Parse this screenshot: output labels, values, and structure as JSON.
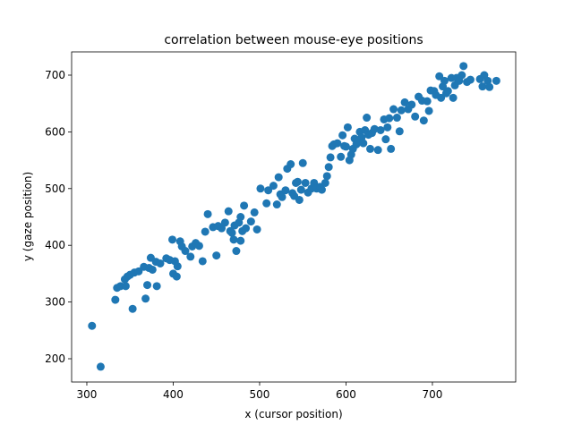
{
  "chart_data": {
    "type": "scatter",
    "title": "correlation between mouse-eye positions",
    "x_label": "x (cursor position)",
    "y_label": "y (gaze position)",
    "color": "#1f77b4",
    "xlim": [
      282.4,
      796.4
    ],
    "ylim": [
      159,
      741
    ],
    "xticks": [
      300,
      400,
      500,
      600,
      700
    ],
    "yticks": [
      200,
      300,
      400,
      500,
      600,
      700
    ],
    "x": [
      306,
      316,
      333,
      335,
      339,
      344,
      347,
      350,
      345,
      353,
      355,
      360,
      366,
      368,
      370,
      372,
      374,
      376,
      380,
      381,
      385,
      392,
      396,
      399,
      400,
      402,
      404,
      405,
      408,
      410,
      414,
      420,
      422,
      426,
      430,
      434,
      437,
      440,
      446,
      450,
      452,
      456,
      460,
      464,
      466,
      468,
      470,
      471,
      473,
      476,
      478,
      478,
      480,
      482,
      484,
      490,
      494,
      497,
      501,
      508,
      510,
      516,
      520,
      522,
      524,
      526,
      530,
      532,
      536,
      538,
      540,
      542,
      544,
      546,
      548,
      550,
      553,
      556,
      560,
      563,
      566,
      570,
      572,
      576,
      578,
      580,
      582,
      584,
      586,
      590,
      594,
      596,
      598,
      600,
      602,
      604,
      606,
      608,
      610,
      612,
      614,
      616,
      618,
      620,
      622,
      624,
      626,
      628,
      630,
      633,
      637,
      640,
      644,
      646,
      648,
      650,
      652,
      655,
      659,
      662,
      664,
      668,
      672,
      676,
      680,
      684,
      688,
      690,
      694,
      696,
      698,
      702,
      704,
      708,
      710,
      712,
      714,
      716,
      718,
      722,
      724,
      726,
      728,
      731,
      734,
      736,
      740,
      744,
      755,
      758,
      760,
      764,
      766,
      774
    ],
    "y": [
      258,
      186,
      304,
      325,
      328,
      340,
      345,
      348,
      328,
      288,
      352,
      354,
      362,
      306,
      330,
      360,
      378,
      357,
      371,
      328,
      368,
      377,
      374,
      410,
      350,
      372,
      345,
      363,
      407,
      398,
      390,
      380,
      398,
      404,
      399,
      372,
      424,
      455,
      432,
      382,
      434,
      430,
      440,
      460,
      425,
      422,
      410,
      435,
      390,
      440,
      450,
      408,
      425,
      470,
      430,
      442,
      458,
      428,
      500,
      474,
      497,
      505,
      472,
      520,
      490,
      485,
      497,
      535,
      543,
      492,
      487,
      510,
      512,
      480,
      498,
      545,
      510,
      493,
      500,
      510,
      500,
      503,
      498,
      510,
      522,
      538,
      555,
      575,
      578,
      580,
      556,
      594,
      575,
      574,
      608,
      550,
      560,
      570,
      588,
      578,
      583,
      600,
      590,
      580,
      603,
      625,
      595,
      570,
      598,
      605,
      568,
      603,
      622,
      587,
      608,
      624,
      570,
      640,
      625,
      601,
      638,
      652,
      640,
      648,
      627,
      662,
      655,
      620,
      654,
      637,
      673,
      672,
      665,
      698,
      660,
      680,
      690,
      668,
      672,
      695,
      660,
      682,
      695,
      690,
      700,
      716,
      688,
      692,
      693,
      680,
      700,
      690,
      679,
      690
    ]
  }
}
